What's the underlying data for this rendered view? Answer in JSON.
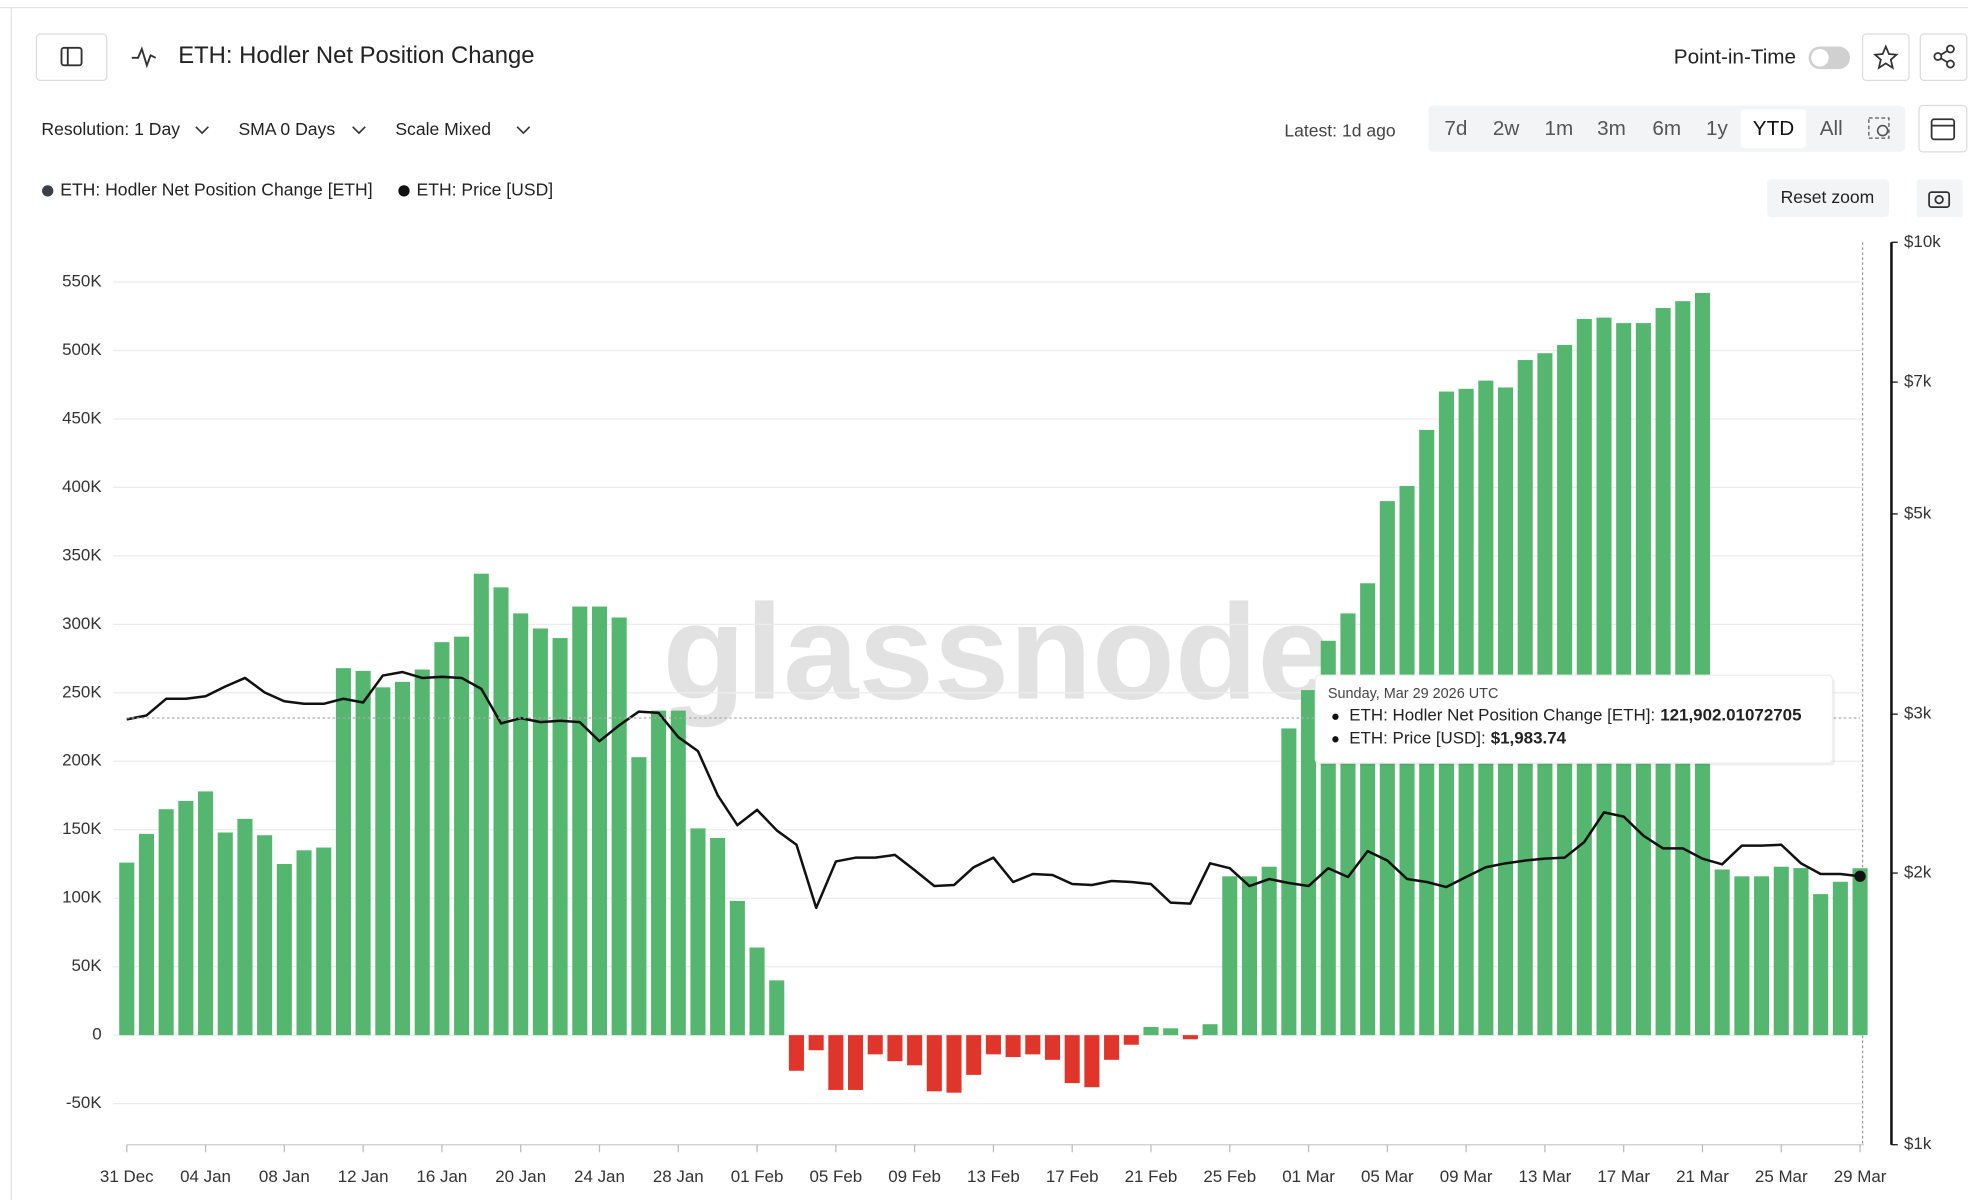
{
  "header": {
    "title": "ETH: Hodler Net Position Change",
    "point_in_time": "Point-in-Time"
  },
  "controls": {
    "resolution": "Resolution: 1 Day",
    "sma": "SMA 0 Days",
    "scale": "Scale Mixed",
    "latest": "Latest: 1d ago",
    "ranges": [
      "7d",
      "2w",
      "1m",
      "3m",
      "6m",
      "1y",
      "YTD",
      "All"
    ],
    "active_range": 6,
    "reset_zoom": "Reset zoom"
  },
  "watermark": "glassnode",
  "chart_data": {
    "type": "bar",
    "grid": true,
    "legend_position": "top-left",
    "categories": [
      "31 Dec",
      null,
      null,
      null,
      "04 Jan",
      null,
      null,
      null,
      "08 Jan",
      null,
      null,
      null,
      "12 Jan",
      null,
      null,
      null,
      "16 Jan",
      null,
      null,
      null,
      "20 Jan",
      null,
      null,
      null,
      "24 Jan",
      null,
      null,
      null,
      "28 Jan",
      null,
      null,
      null,
      "01 Feb",
      null,
      null,
      null,
      "05 Feb",
      null,
      null,
      null,
      "09 Feb",
      null,
      null,
      null,
      "13 Feb",
      null,
      null,
      null,
      "17 Feb",
      null,
      null,
      null,
      "21 Feb",
      null,
      null,
      null,
      "25 Feb",
      null,
      null,
      null,
      "01 Mar",
      null,
      null,
      null,
      "05 Mar",
      null,
      null,
      null,
      "09 Mar",
      null,
      null,
      null,
      "13 Mar",
      null,
      null,
      null,
      "17 Mar",
      null,
      null,
      null,
      "21 Mar",
      null,
      null,
      null,
      "25 Mar",
      null,
      null,
      null,
      "29 Mar"
    ],
    "series": [
      {
        "name": "ETH: Hodler Net Position Change [ETH]",
        "type": "bar",
        "color": "#55b66f",
        "negative_color": "#e0352b",
        "values": [
          126000,
          147000,
          165000,
          171000,
          178000,
          148000,
          158000,
          146000,
          125000,
          135000,
          137000,
          268000,
          266000,
          254000,
          258000,
          267000,
          287000,
          291000,
          337000,
          327000,
          308000,
          297000,
          290000,
          313000,
          313000,
          305000,
          203000,
          237000,
          237000,
          151000,
          144000,
          98000,
          64000,
          40000,
          -26000,
          -11000,
          -40000,
          -40000,
          -14000,
          -19000,
          -22000,
          -41000,
          -42000,
          -29000,
          -14000,
          -16000,
          -14000,
          -18000,
          -35000,
          -38000,
          -18000,
          -7000,
          6000,
          5000,
          -3000,
          8000,
          116000,
          116000,
          123000,
          224000,
          252000,
          288000,
          308000,
          330000,
          390000,
          401000,
          442000,
          470000,
          472000,
          478000,
          473000,
          493000,
          498000,
          504000,
          523000,
          524000,
          520000,
          520000,
          531000,
          536000,
          542000,
          121000,
          116000,
          116000,
          123000,
          122000,
          103000,
          112000,
          121902.01072705
        ]
      },
      {
        "name": "ETH: Price [USD]",
        "type": "line",
        "axis": "y2",
        "color": "#111111",
        "values": [
          2960,
          2990,
          3120,
          3120,
          3140,
          3220,
          3290,
          3170,
          3100,
          3080,
          3080,
          3120,
          3090,
          3310,
          3340,
          3290,
          3300,
          3290,
          3200,
          2930,
          2970,
          2940,
          2950,
          2940,
          2800,
          2915,
          3020,
          3010,
          2830,
          2730,
          2440,
          2260,
          2350,
          2230,
          2150,
          1830,
          2060,
          2080,
          2080,
          2095,
          2015,
          1935,
          1940,
          2030,
          2080,
          1955,
          1995,
          1990,
          1945,
          1940,
          1960,
          1955,
          1945,
          1855,
          1850,
          2050,
          2025,
          1935,
          1970,
          1950,
          1935,
          2025,
          1980,
          2115,
          2065,
          1970,
          1955,
          1930,
          1980,
          2030,
          2050,
          2065,
          2075,
          2080,
          2165,
          2335,
          2310,
          2200,
          2130,
          2130,
          2075,
          2045,
          2145,
          2145,
          2150,
          2050,
          1995,
          1995,
          1983.74
        ]
      }
    ],
    "ylim": [
      -80000,
      579000
    ],
    "yticks": [
      {
        "value": -50000,
        "label": "-50K"
      },
      0,
      {
        "value": 50000,
        "label": "50K"
      },
      {
        "value": 100000,
        "label": "100K"
      },
      {
        "value": 150000,
        "label": "150K"
      },
      {
        "value": 200000,
        "label": "200K"
      },
      {
        "value": 250000,
        "label": "250K"
      },
      {
        "value": 300000,
        "label": "300K"
      },
      {
        "value": 350000,
        "label": "350K"
      },
      {
        "value": 400000,
        "label": "400K"
      },
      {
        "value": 450000,
        "label": "450K"
      },
      {
        "value": 500000,
        "label": "500K"
      },
      {
        "value": 550000,
        "label": "550K"
      }
    ],
    "y2lim": [
      1000,
      10000
    ],
    "y2scale": "log",
    "y2ticks": [
      {
        "value": 1000,
        "label": "$1k"
      },
      {
        "value": 2000,
        "label": "$2k"
      },
      {
        "value": 3000,
        "label": "$3k"
      },
      {
        "value": 5000,
        "label": "$5k"
      },
      {
        "value": 7000,
        "label": "$7k"
      },
      {
        "value": 10000,
        "label": "$10k"
      }
    ],
    "tooltip": {
      "date": "Sunday, Mar 29 2026 UTC",
      "labels": [
        "ETH: Hodler Net Position Change [ETH]:",
        "ETH: Price [USD]:"
      ],
      "value_labels": [
        "121,902.01072705",
        "$1,983.74"
      ]
    }
  }
}
